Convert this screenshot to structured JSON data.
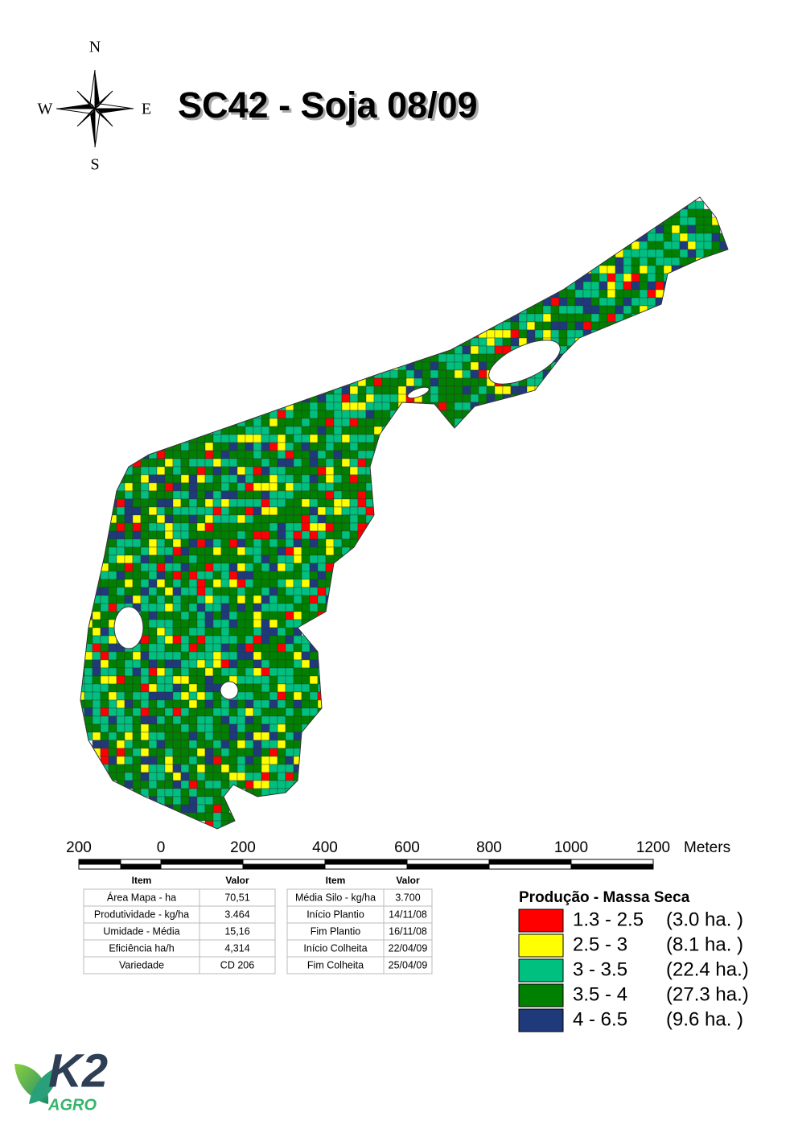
{
  "compass": {
    "north": "N",
    "south": "S",
    "east": "E",
    "west": "W"
  },
  "title": "SC42 - Soja 08/09",
  "scale_bar": {
    "labels": [
      "200",
      "0",
      "200",
      "400",
      "600",
      "800",
      "1000",
      "1200"
    ],
    "unit": "Meters"
  },
  "table_left": {
    "header": [
      "Item",
      "Valor"
    ],
    "rows": [
      [
        "Área Mapa - ha",
        "70,51"
      ],
      [
        "Produtividade - kg/ha",
        "3.464"
      ],
      [
        "Umidade - Média",
        "15,16"
      ],
      [
        "Eficiência ha/h",
        "4,314"
      ],
      [
        "Variedade",
        "CD 206"
      ]
    ]
  },
  "table_right": {
    "header": [
      "Item",
      "Valor"
    ],
    "rows": [
      [
        "Média Silo - kg/ha",
        "3.700"
      ],
      [
        "Início Plantio",
        "14/11/08"
      ],
      [
        "Fim Plantio",
        "16/11/08"
      ],
      [
        "Início Colheita",
        "22/04/09"
      ],
      [
        "Fim Colheita",
        "25/04/09"
      ]
    ]
  },
  "legend": {
    "title": "Produção - Massa Seca",
    "items": [
      {
        "label": "1.3 - 2.5",
        "area": "(3.0 ha.  )",
        "color": "#ff0000"
      },
      {
        "label": "2.5 - 3",
        "area": "(8.1 ha.  )",
        "color": "#ffff00"
      },
      {
        "label": "3 - 3.5",
        "area": "(22.4 ha.)",
        "color": "#00c080"
      },
      {
        "label": "3.5 - 4",
        "area": "(27.3 ha.)",
        "color": "#008000"
      },
      {
        "label": "4 - 6.5",
        "area": "(9.6 ha.  )",
        "color": "#1f3a7a"
      }
    ]
  },
  "logo": {
    "brand": "K2",
    "sub": "AGRO"
  }
}
